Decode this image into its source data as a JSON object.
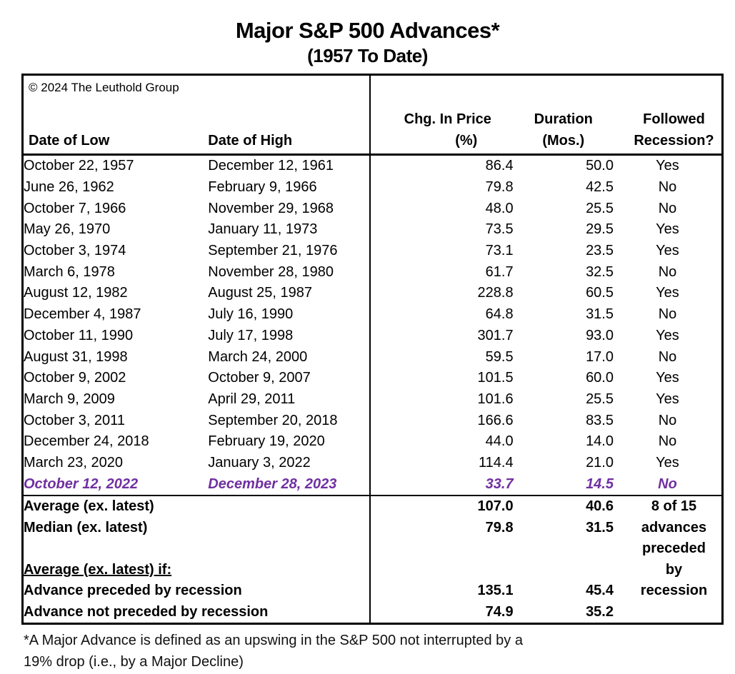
{
  "title": "Major S&P 500 Advances*",
  "subtitle": "(1957 To Date)",
  "copyright": "© 2024 The Leuthold Group",
  "headers": {
    "low": "Date of Low",
    "high": "Date of High",
    "chg": [
      "Chg. In Price",
      "(%)"
    ],
    "dur": [
      "Duration",
      "(Mos.)"
    ],
    "rec": [
      "Followed",
      "Recession?"
    ]
  },
  "footnote_lines": [
    "*A Major Advance is defined as an upswing in the S&P 500 not interrupted by a",
    "19% drop (i.e., by a Major Decline)"
  ],
  "colors": {
    "highlight_text": "#7030A0",
    "border": "#000000",
    "text": "#000000",
    "background": "#FFFFFF"
  },
  "chart_data": {
    "type": "table",
    "title": "Major S&P 500 Advances* (1957 To Date)",
    "columns": [
      "Date of Low",
      "Date of High",
      "Chg. In Price (%)",
      "Duration (Mos.)",
      "Followed Recession?"
    ],
    "rows": [
      {
        "low": "October 22, 1957",
        "high": "December 12, 1961",
        "chg": "86.4",
        "dur": "50.0",
        "recession": "Yes",
        "highlight": false
      },
      {
        "low": "June 26, 1962",
        "high": "February 9, 1966",
        "chg": "79.8",
        "dur": "42.5",
        "recession": "No",
        "highlight": false
      },
      {
        "low": "October 7, 1966",
        "high": "November 29, 1968",
        "chg": "48.0",
        "dur": "25.5",
        "recession": "No",
        "highlight": false
      },
      {
        "low": "May 26, 1970",
        "high": "January 11, 1973",
        "chg": "73.5",
        "dur": "29.5",
        "recession": "Yes",
        "highlight": false
      },
      {
        "low": "October 3, 1974",
        "high": "September 21, 1976",
        "chg": "73.1",
        "dur": "23.5",
        "recession": "Yes",
        "highlight": false
      },
      {
        "low": "March 6, 1978",
        "high": "November 28, 1980",
        "chg": "61.7",
        "dur": "32.5",
        "recession": "No",
        "highlight": false
      },
      {
        "low": "August 12, 1982",
        "high": "August 25, 1987",
        "chg": "228.8",
        "dur": "60.5",
        "recession": "Yes",
        "highlight": false
      },
      {
        "low": "December 4, 1987",
        "high": "July 16, 1990",
        "chg": "64.8",
        "dur": "31.5",
        "recession": "No",
        "highlight": false
      },
      {
        "low": "October 11, 1990",
        "high": "July 17, 1998",
        "chg": "301.7",
        "dur": "93.0",
        "recession": "Yes",
        "highlight": false
      },
      {
        "low": "August 31, 1998",
        "high": "March 24, 2000",
        "chg": "59.5",
        "dur": "17.0",
        "recession": "No",
        "highlight": false
      },
      {
        "low": "October 9, 2002",
        "high": "October 9, 2007",
        "chg": "101.5",
        "dur": "60.0",
        "recession": "Yes",
        "highlight": false
      },
      {
        "low": "March 9, 2009",
        "high": "April 29, 2011",
        "chg": "101.6",
        "dur": "25.5",
        "recession": "Yes",
        "highlight": false
      },
      {
        "low": "October 3, 2011",
        "high": "September 20, 2018",
        "chg": "166.6",
        "dur": "83.5",
        "recession": "No",
        "highlight": false
      },
      {
        "low": "December 24, 2018",
        "high": "February 19, 2020",
        "chg": "44.0",
        "dur": "14.0",
        "recession": "No",
        "highlight": false
      },
      {
        "low": "March 23, 2020",
        "high": "January 3, 2022",
        "chg": "114.4",
        "dur": "21.0",
        "recession": "Yes",
        "highlight": false
      },
      {
        "low": "October 12, 2022",
        "high": "December 28, 2023",
        "chg": "33.7",
        "dur": "14.5",
        "recession": "No",
        "highlight": true
      }
    ],
    "summary": [
      {
        "label": "Average (ex. latest)",
        "chg": "107.0",
        "dur": "40.6",
        "note": "8 of 15",
        "underline": false
      },
      {
        "label": "Median (ex. latest)",
        "chg": "79.8",
        "dur": "31.5",
        "note": "advances",
        "underline": false
      },
      {
        "label": "",
        "chg": "",
        "dur": "",
        "note": "preceded",
        "underline": false
      },
      {
        "label": "Average (ex. latest) if:",
        "chg": "",
        "dur": "",
        "note": "by",
        "underline": true
      },
      {
        "label": "Advance preceded by recession",
        "chg": "135.1",
        "dur": "45.4",
        "note": "recession",
        "underline": false
      },
      {
        "label": "Advance not preceded by recession",
        "chg": "74.9",
        "dur": "35.2",
        "note": "",
        "underline": false
      }
    ],
    "footnote": "*A Major Advance is defined as an upswing in the S&P 500 not interrupted by a 19% drop (i.e., by a Major Decline)"
  }
}
